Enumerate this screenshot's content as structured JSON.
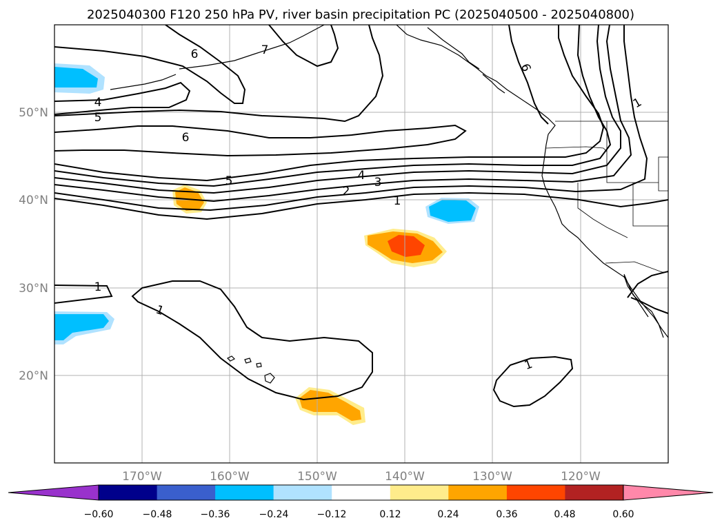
{
  "title": "2025040300 F120 250 hPa PV, river basin precipitation PC (2025040500 - 2025040800)",
  "map": {
    "lat_labels": [
      "50°N",
      "40°N",
      "30°N",
      "20°N"
    ],
    "lon_labels": [
      "170°W",
      "160°W",
      "150°W",
      "140°W",
      "130°W",
      "120°W"
    ],
    "gridlines": true
  },
  "contour_labels": [
    "6",
    "7",
    "4",
    "5",
    "6",
    "6",
    "1",
    "5",
    "4",
    "3",
    "2",
    "1",
    "1",
    "1",
    "1"
  ],
  "colorbar": {
    "ticks": [
      "−0.60",
      "−0.48",
      "−0.36",
      "−0.24",
      "−0.12",
      "0.12",
      "0.24",
      "0.36",
      "0.48",
      "0.60"
    ],
    "colors": [
      "#9932cc",
      "#00008b",
      "#3a5fcd",
      "#00bfff",
      "#b0e2ff",
      "#ffffff",
      "#ffec8b",
      "#ffa500",
      "#ff4500",
      "#b22222",
      "#ff88aa"
    ],
    "extend": "both"
  },
  "shading_colors": {
    "neg_light": "#b0e2ff",
    "neg_mid": "#00bfff",
    "pos_light": "#ffec8b",
    "pos_mid": "#ffa500",
    "pos_strong": "#ff4500"
  }
}
